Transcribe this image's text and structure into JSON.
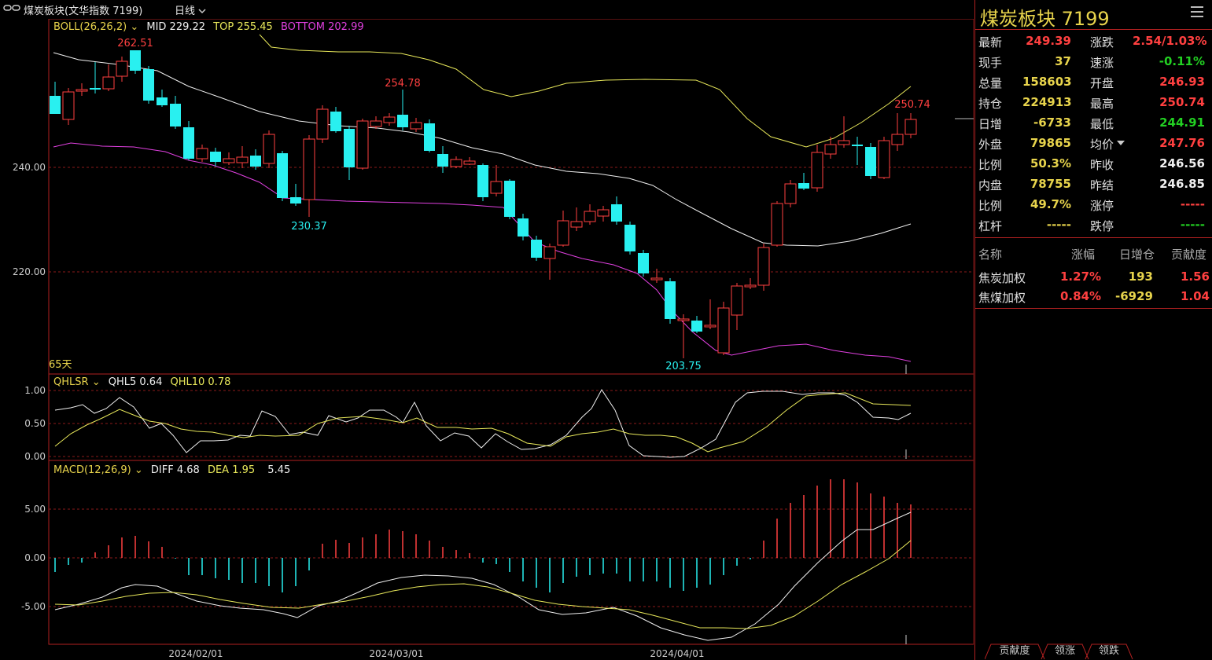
{
  "titlebar": {
    "back_icon": "link-icon",
    "instrument": "煤炭板块(文华指数 7199)",
    "period": "日线",
    "period_icon": "chevron-down-icon"
  },
  "boll": {
    "name": "BOLL(26,26,2)",
    "mid": "MID 229.22",
    "top": "TOP 255.45",
    "bottom": "BOTTOM 202.99"
  },
  "price_axis": [
    "240.00",
    "220.00"
  ],
  "price_annotations": [
    "262.51",
    "254.78",
    "230.37",
    "203.75",
    "250.74"
  ],
  "days_label": "65天",
  "qhlsr": {
    "name": "QHLSR",
    "qhl5": "QHL5 0.64",
    "qhl10": "QHL10 0.78",
    "axis": [
      "1.00",
      "0.50",
      "0.00"
    ]
  },
  "macd": {
    "name": "MACD(12,26,9)",
    "diff": "DIFF 4.68",
    "dea": "DEA 1.95",
    "macd": "5.45",
    "axis": [
      "5.00",
      "0.00",
      "-5.00"
    ]
  },
  "date_axis": [
    "2024/02/01",
    "2024/03/01",
    "2024/04/01"
  ],
  "panel": {
    "title": "煤炭板块  7199",
    "quotes": [
      {
        "l": "最新",
        "v": "249.39",
        "c": "red",
        "l2": "涨跌",
        "v2": "2.54/1.03%",
        "c2": "red"
      },
      {
        "l": "现手",
        "v": "37",
        "c": "yellow",
        "l2": "速涨",
        "v2": "-0.11%",
        "c2": "green"
      },
      {
        "l": "总量",
        "v": "158603",
        "c": "yellow",
        "l2": "开盘",
        "v2": "246.93",
        "c2": "red"
      },
      {
        "l": "持仓",
        "v": "224913",
        "c": "yellow",
        "l2": "最高",
        "v2": "250.74",
        "c2": "red"
      },
      {
        "l": "日增",
        "v": "-6733",
        "c": "yellow",
        "l2": "最低",
        "v2": "244.91",
        "c2": "green"
      },
      {
        "l": "外盘",
        "v": "79865",
        "c": "yellow",
        "l2": "均价",
        "v2": "247.76",
        "c2": "red"
      },
      {
        "l": "比例",
        "v": "50.3%",
        "c": "yellow",
        "l2": "昨收",
        "v2": "246.56",
        "c2": "white"
      },
      {
        "l": "内盘",
        "v": "78755",
        "c": "yellow",
        "l2": "昨结",
        "v2": "246.85",
        "c2": "white"
      },
      {
        "l": "比例",
        "v": "49.7%",
        "c": "yellow",
        "l2": "涨停",
        "v2": "-----",
        "c2": "red"
      },
      {
        "l": "杠杆",
        "v": "-----",
        "c": "yellow",
        "l2": "跌停",
        "v2": "-----",
        "c2": "green"
      }
    ],
    "table_headers": [
      "名称",
      "涨幅",
      "日增仓",
      "贡献度"
    ],
    "table_rows": [
      {
        "name": "焦炭加权",
        "chg": "1.27%",
        "inc": "193",
        "contrib": "1.56"
      },
      {
        "name": "焦煤加权",
        "chg": "0.84%",
        "inc": "-6929",
        "contrib": "1.04"
      }
    ]
  },
  "bottom_tabs": [
    "贡献度",
    "领涨",
    "领跌"
  ],
  "colors": {
    "up": "#ff4040",
    "down": "#29f0f0",
    "grid": "#8b1a1a",
    "mid": "#f0f0f0",
    "top": "#e8e85a",
    "bottom": "#e040e0"
  }
}
